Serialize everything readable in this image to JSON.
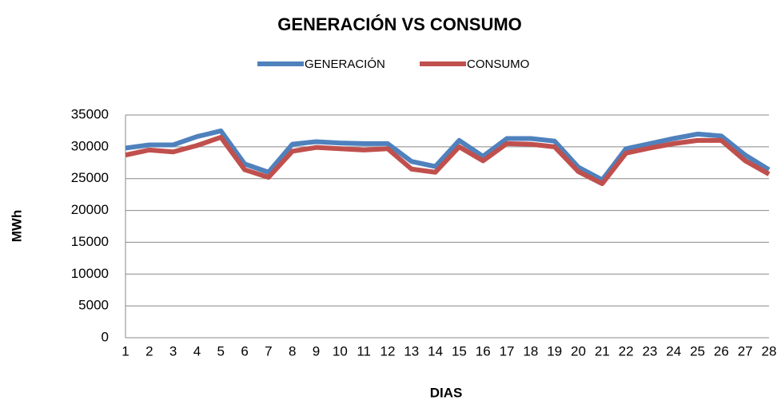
{
  "chart_data": {
    "type": "line",
    "title": "GENERACIÓN VS CONSUMO",
    "x_label": "DIAS",
    "y_label": "MWh",
    "categories": [
      "1",
      "2",
      "3",
      "4",
      "5",
      "6",
      "7",
      "8",
      "9",
      "10",
      "11",
      "12",
      "13",
      "14",
      "15",
      "16",
      "17",
      "18",
      "19",
      "20",
      "21",
      "22",
      "23",
      "24",
      "25",
      "26",
      "27",
      "28"
    ],
    "series": [
      {
        "name": "GENERACIÓN",
        "color": "#4f81bd",
        "values": [
          29800,
          30300,
          30300,
          31600,
          32500,
          27300,
          26000,
          30400,
          30800,
          30600,
          30500,
          30500,
          27700,
          26900,
          31000,
          28500,
          31300,
          31300,
          30900,
          26800,
          24800,
          29700,
          30500,
          31300,
          32000,
          31700,
          28700,
          26400
        ]
      },
      {
        "name": "CONSUMO",
        "color": "#c0504d",
        "values": [
          28700,
          29500,
          29200,
          30200,
          31500,
          26400,
          25200,
          29300,
          29900,
          29700,
          29500,
          29700,
          26500,
          26000,
          30000,
          27800,
          30500,
          30400,
          30000,
          26100,
          24200,
          29000,
          29800,
          30500,
          31000,
          31000,
          27800,
          25700
        ]
      }
    ],
    "ylim": [
      0,
      35000
    ],
    "yticks": [
      0,
      5000,
      10000,
      15000,
      20000,
      25000,
      30000,
      35000
    ],
    "grid": true,
    "legend": "top"
  }
}
